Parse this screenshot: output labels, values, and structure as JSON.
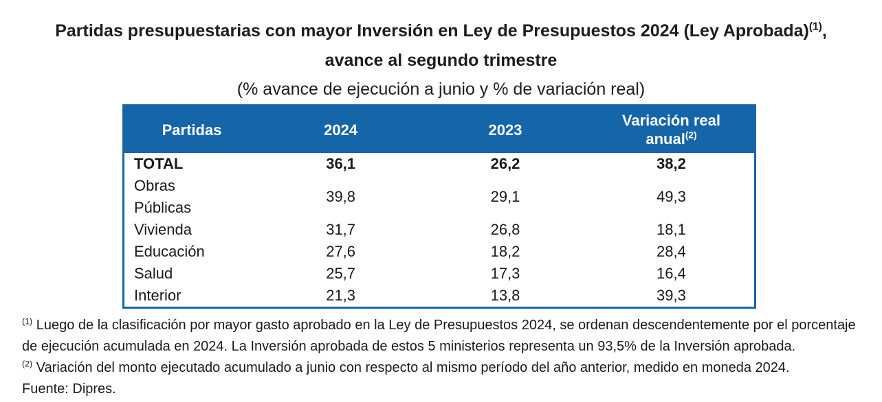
{
  "page": {
    "title_line1": "Partidas presupuestarias con mayor Inversión en Ley de Presupuestos 2024 (Ley Aprobada)",
    "title_line1_sup": "(1)",
    "title_line1_tail": ",",
    "title_line2": "avance al segundo trimestre",
    "subtitle": "(% avance de ejecución a junio y % de variación real)"
  },
  "table": {
    "headers": {
      "partidas": "Partidas",
      "y2024": "2024",
      "y2023": "2023",
      "variacion": "Variación real\nanual",
      "variacion_sup": "(2)"
    },
    "rows": [
      {
        "partida": "TOTAL",
        "y2024": "36,1",
        "y2023": "26,2",
        "variacion": "38,2"
      },
      {
        "partida": "Obras\nPúblicas",
        "y2024": "39,8",
        "y2023": "29,1",
        "variacion": "49,3"
      },
      {
        "partida": "Vivienda",
        "y2024": "31,7",
        "y2023": "26,8",
        "variacion": "18,1"
      },
      {
        "partida": "Educación",
        "y2024": "27,6",
        "y2023": "18,2",
        "variacion": "28,4"
      },
      {
        "partida": "Salud",
        "y2024": "25,7",
        "y2023": "17,3",
        "variacion": "16,4"
      },
      {
        "partida": "Interior",
        "y2024": "21,3",
        "y2023": "13,8",
        "variacion": "39,3"
      }
    ]
  },
  "footnotes": [
    {
      "sup": "(1)",
      "text": " Luego de la clasificación por mayor gasto aprobado en la Ley de Presupuestos 2024, se ordenan descendentemente por el porcentaje de ejecución acumulada en 2024. La Inversión aprobada de estos 5 ministerios representa un 93,5% de la Inversión aprobada."
    },
    {
      "sup": "(2)",
      "text": " Variación del monto ejecutado acumulado a junio con respecto al mismo período del año anterior, medido en moneda 2024."
    }
  ],
  "source": "Fuente: Dipres.",
  "colors": {
    "header_bg": "#1565a9",
    "header_text": "#ffffff",
    "border": "#1565a9"
  }
}
